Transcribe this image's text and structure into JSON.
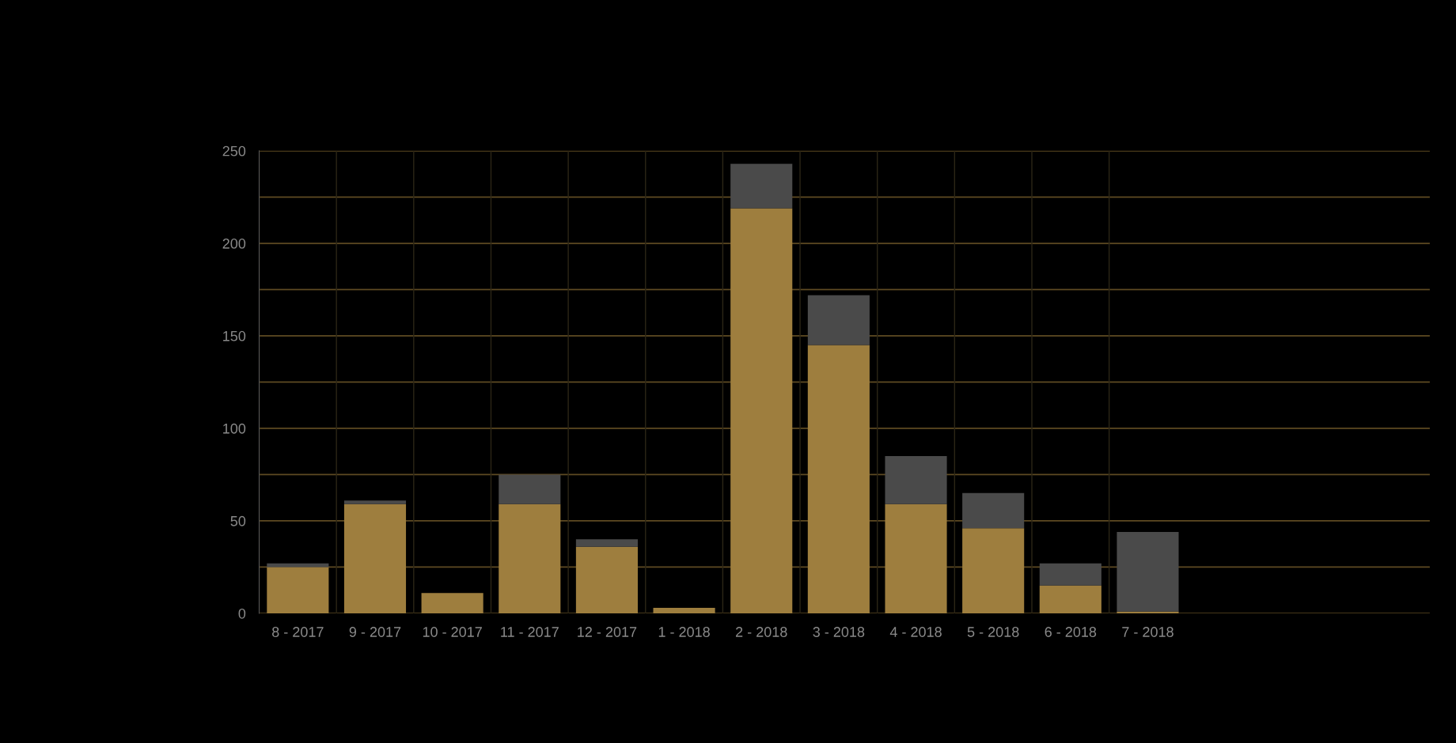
{
  "chart_data": {
    "type": "bar",
    "stacked": true,
    "categories": [
      "8 - 2017",
      "9 - 2017",
      "10 - 2017",
      "11 - 2017",
      "12 - 2017",
      "1 - 2018",
      "2 - 2018",
      "3 - 2018",
      "4 - 2018",
      "5 - 2018",
      "6 - 2018",
      "7 - 2018"
    ],
    "series": [
      {
        "color": "#9e7e3e",
        "values": [
          25,
          59,
          11,
          59,
          36,
          3,
          219,
          145,
          59,
          46,
          15,
          1
        ]
      },
      {
        "color": "#4a4a4a",
        "values": [
          2,
          2,
          0,
          16,
          4,
          0,
          24,
          27,
          26,
          19,
          12,
          43
        ]
      }
    ],
    "ylim": [
      0,
      250
    ],
    "yticks": [
      0,
      {
        "value": 25,
        "label": null
      },
      50,
      {
        "value": 75,
        "label": null
      },
      100,
      {
        "value": 125,
        "label": null
      },
      150,
      {
        "value": 175,
        "label": null
      },
      200,
      {
        "value": 225,
        "label": null
      },
      250
    ],
    "grid": true,
    "legend": false
  }
}
